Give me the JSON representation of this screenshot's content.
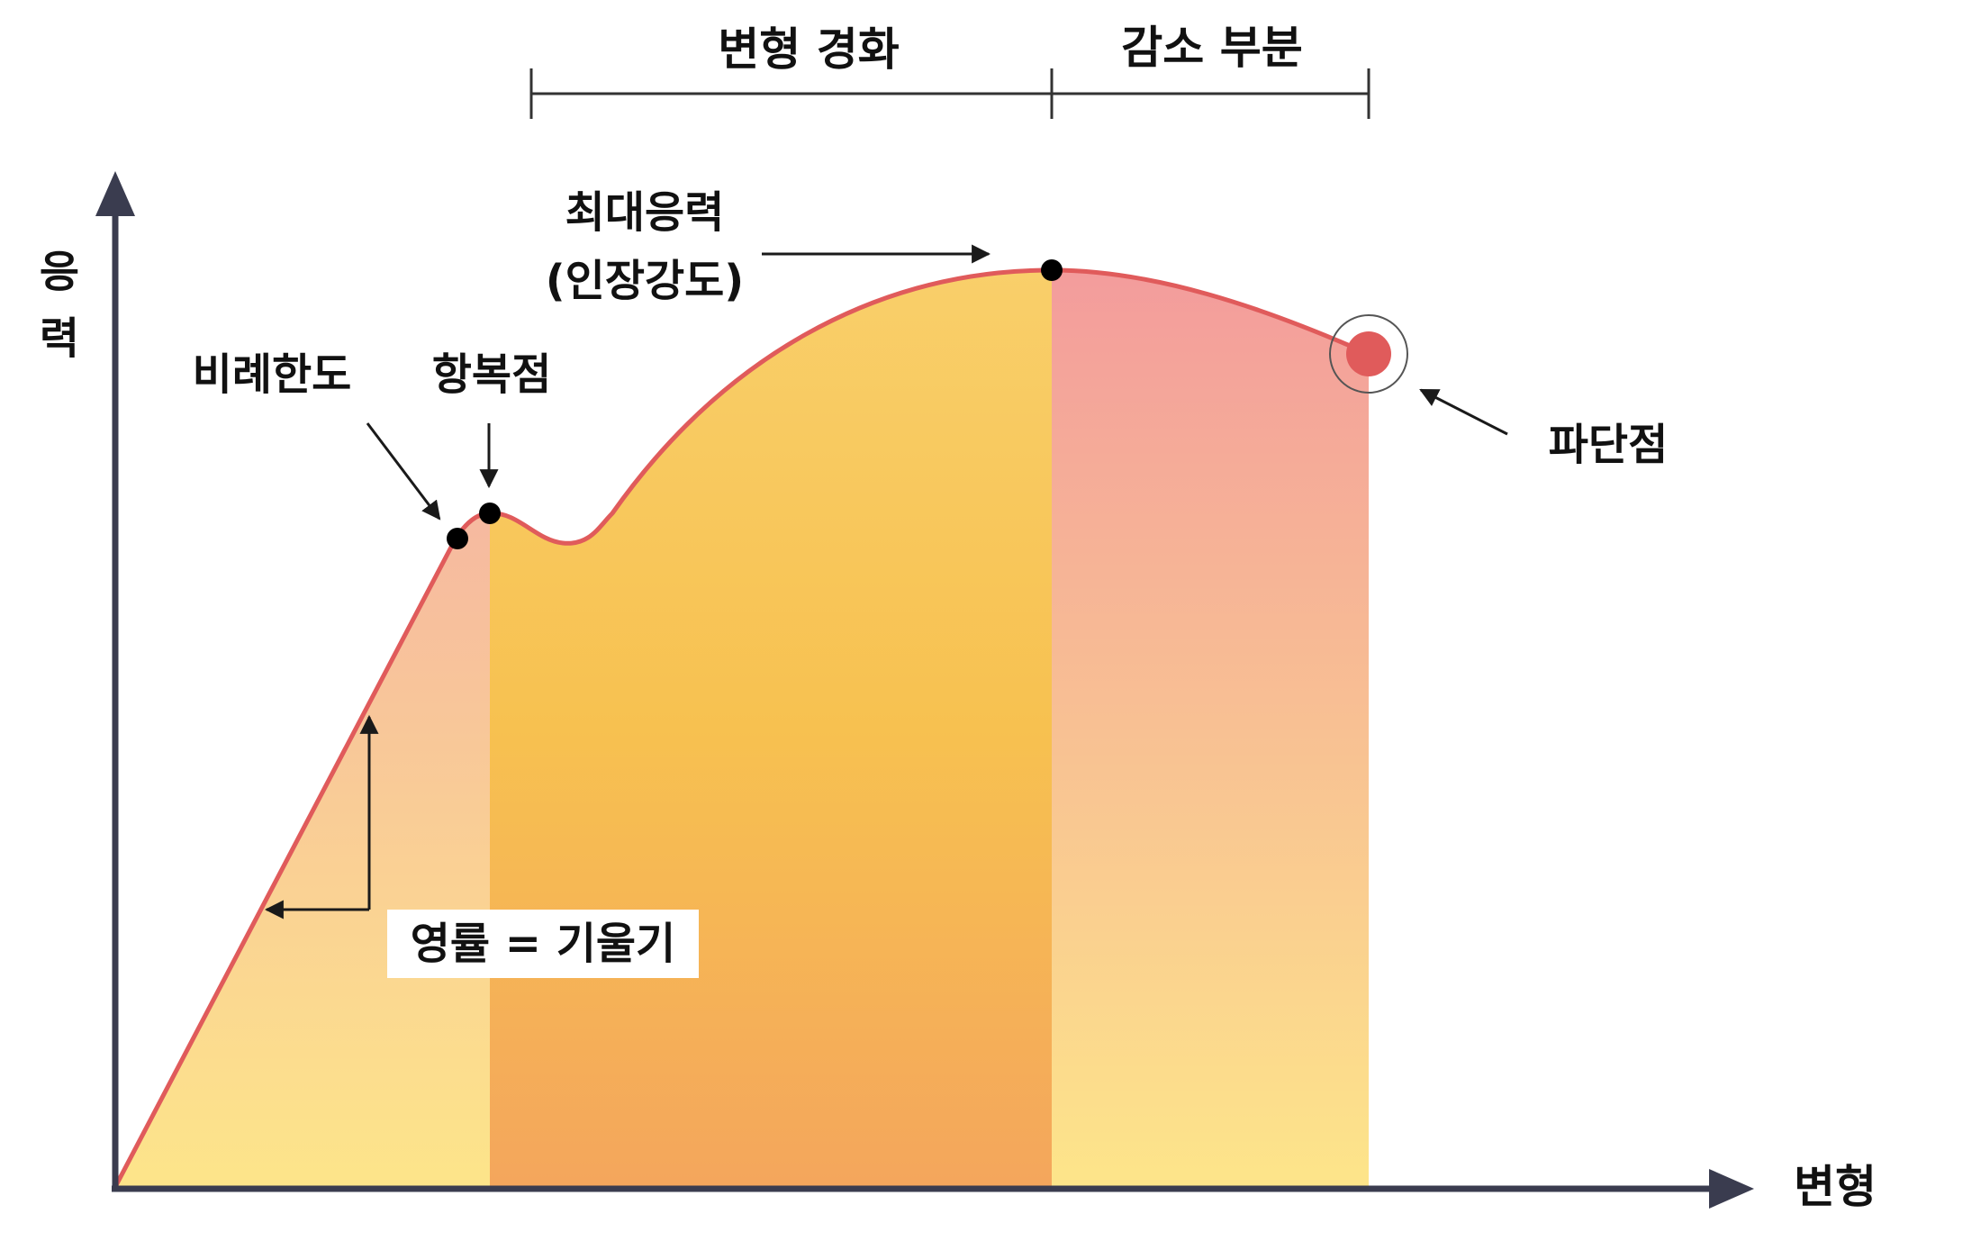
{
  "header": {
    "region_left_label": "변형 경화",
    "region_right_label": "감소 부분"
  },
  "axes": {
    "y_label": "응력",
    "x_label": "변형"
  },
  "annotations": {
    "proportional_limit": "비례한도",
    "yield_point": "항복점",
    "max_stress_line1": "최대응력",
    "max_stress_line2": "(인장강도)",
    "fracture_point": "파단점",
    "modulus": "영률 = 기울기"
  },
  "colors": {
    "curve": "#e05b5b",
    "axis": "#3a3c4f",
    "point": "#000000",
    "fracture_marker": "#e05b5b",
    "elastic_region_top": "#f6b9a0",
    "elastic_region_bottom": "#fde58a",
    "hardening_region_top": "#f9cf6a",
    "hardening_region_bottom": "#f4a65c",
    "necking_region_top": "#f39c9c",
    "necking_region_bottom": "#fde58a"
  }
}
